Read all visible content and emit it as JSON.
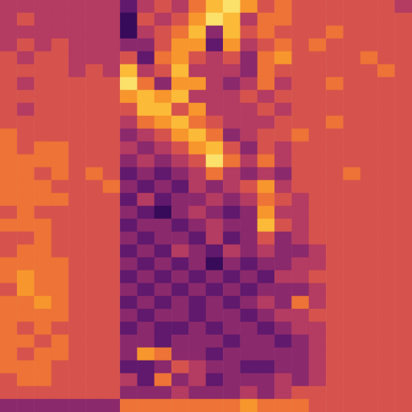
{
  "chart_data": {
    "type": "heatmap",
    "tick_labels": false,
    "grid": false,
    "zlim": [
      0,
      9
    ],
    "cells": [
      [
        4,
        4,
        4,
        4,
        4,
        4,
        4,
        2,
        4,
        5,
        4,
        6,
        8,
        9,
        7,
        5,
        6,
        5,
        5,
        5,
        5,
        5,
        5,
        4
      ],
      [
        4,
        5,
        4,
        4,
        4,
        4,
        4,
        1,
        5,
        4,
        5,
        7,
        9,
        8,
        4,
        6,
        6,
        5,
        5,
        5,
        5,
        5,
        5,
        5
      ],
      [
        4,
        4,
        4,
        4,
        4,
        4,
        4,
        1,
        4,
        5,
        6,
        8,
        3,
        8,
        5,
        6,
        5,
        5,
        5,
        6,
        5,
        5,
        5,
        5
      ],
      [
        4,
        5,
        4,
        5,
        4,
        4,
        4,
        3,
        3,
        5,
        7,
        7,
        2,
        7,
        4,
        5,
        6,
        5,
        6,
        5,
        5,
        5,
        5,
        5
      ],
      [
        5,
        4,
        5,
        5,
        4,
        4,
        4,
        5,
        2,
        6,
        7,
        5,
        4,
        5,
        3,
        6,
        7,
        5,
        5,
        5,
        5,
        6,
        5,
        5
      ],
      [
        5,
        5,
        5,
        5,
        4,
        5,
        4,
        8,
        4,
        5,
        8,
        4,
        4,
        4,
        3,
        6,
        5,
        5,
        5,
        5,
        5,
        5,
        6,
        5
      ],
      [
        5,
        4,
        5,
        5,
        5,
        5,
        5,
        9,
        6,
        3,
        7,
        7,
        4,
        3,
        4,
        6,
        4,
        5,
        5,
        6,
        5,
        5,
        5,
        5
      ],
      [
        5,
        5,
        5,
        5,
        5,
        5,
        5,
        7,
        8,
        7,
        8,
        4,
        4,
        4,
        5,
        4,
        5,
        5,
        5,
        5,
        5,
        5,
        5,
        5
      ],
      [
        5,
        4,
        5,
        5,
        5,
        5,
        5,
        5,
        8,
        8,
        5,
        7,
        4,
        4,
        4,
        5,
        4,
        5,
        5,
        5,
        5,
        5,
        5,
        5
      ],
      [
        5,
        5,
        5,
        5,
        5,
        5,
        5,
        4,
        6,
        7,
        8,
        6,
        5,
        4,
        4,
        4,
        5,
        5,
        5,
        6,
        5,
        5,
        5,
        5
      ],
      [
        6,
        5,
        5,
        5,
        5,
        5,
        5,
        3,
        4,
        5,
        7,
        8,
        6,
        3,
        4,
        5,
        5,
        6,
        5,
        5,
        5,
        5,
        5,
        5
      ],
      [
        6,
        5,
        6,
        6,
        5,
        5,
        5,
        4,
        3,
        4,
        5,
        7,
        8,
        5,
        3,
        5,
        4,
        5,
        5,
        5,
        5,
        5,
        5,
        5
      ],
      [
        6,
        6,
        6,
        6,
        5,
        5,
        5,
        3,
        4,
        3,
        4,
        5,
        9,
        6,
        4,
        6,
        4,
        5,
        5,
        5,
        5,
        5,
        5,
        5
      ],
      [
        6,
        6,
        5,
        6,
        5,
        6,
        5,
        2,
        3,
        2,
        3,
        4,
        6,
        4,
        3,
        4,
        3,
        5,
        5,
        5,
        6,
        5,
        5,
        5
      ],
      [
        6,
        6,
        6,
        5,
        5,
        5,
        6,
        3,
        2,
        3,
        2,
        4,
        3,
        4,
        5,
        7,
        4,
        5,
        5,
        5,
        5,
        5,
        5,
        5
      ],
      [
        6,
        6,
        6,
        6,
        5,
        5,
        5,
        2,
        4,
        2,
        3,
        3,
        4,
        3,
        4,
        6,
        5,
        4,
        5,
        5,
        5,
        5,
        5,
        5
      ],
      [
        5,
        6,
        5,
        5,
        5,
        5,
        5,
        3,
        2,
        1,
        3,
        4,
        3,
        2,
        3,
        7,
        4,
        4,
        5,
        5,
        5,
        5,
        5,
        5
      ],
      [
        6,
        6,
        6,
        5,
        5,
        5,
        5,
        2,
        3,
        3,
        2,
        3,
        4,
        3,
        3,
        8,
        5,
        4,
        5,
        5,
        5,
        5,
        5,
        5
      ],
      [
        5,
        5,
        6,
        5,
        5,
        5,
        5,
        3,
        2,
        3,
        3,
        2,
        4,
        2,
        3,
        5,
        3,
        4,
        5,
        5,
        5,
        5,
        5,
        5
      ],
      [
        5,
        6,
        6,
        5,
        5,
        5,
        5,
        2,
        3,
        2,
        4,
        3,
        2,
        4,
        3,
        4,
        3,
        3,
        4,
        5,
        5,
        5,
        5,
        5
      ],
      [
        6,
        6,
        6,
        6,
        5,
        5,
        5,
        3,
        2,
        3,
        2,
        3,
        1,
        3,
        2,
        3,
        3,
        4,
        4,
        5,
        5,
        5,
        5,
        5
      ],
      [
        6,
        7,
        6,
        6,
        5,
        5,
        5,
        2,
        3,
        2,
        3,
        2,
        3,
        2,
        3,
        2,
        4,
        4,
        5,
        5,
        5,
        5,
        5,
        5
      ],
      [
        5,
        7,
        6,
        6,
        5,
        5,
        5,
        3,
        2,
        3,
        2,
        3,
        2,
        3,
        2,
        3,
        3,
        3,
        4,
        5,
        5,
        5,
        5,
        5
      ],
      [
        6,
        6,
        7,
        6,
        5,
        5,
        5,
        2,
        3,
        2,
        3,
        2,
        3,
        2,
        3,
        4,
        3,
        6,
        4,
        5,
        5,
        5,
        5,
        5
      ],
      [
        6,
        6,
        6,
        6,
        5,
        5,
        5,
        3,
        2,
        3,
        3,
        2,
        3,
        3,
        2,
        3,
        4,
        4,
        5,
        5,
        5,
        5,
        5,
        5
      ],
      [
        6,
        5,
        6,
        5,
        5,
        5,
        5,
        2,
        3,
        2,
        2,
        3,
        2,
        3,
        3,
        2,
        3,
        4,
        4,
        5,
        5,
        5,
        5,
        5
      ],
      [
        6,
        6,
        5,
        6,
        5,
        5,
        5,
        3,
        3,
        2,
        3,
        3,
        3,
        2,
        3,
        3,
        2,
        3,
        4,
        5,
        5,
        5,
        5,
        5
      ],
      [
        6,
        5,
        6,
        6,
        5,
        5,
        5,
        3,
        7,
        6,
        3,
        3,
        2,
        3,
        3,
        3,
        3,
        3,
        4,
        5,
        5,
        5,
        5,
        5
      ],
      [
        6,
        6,
        6,
        5,
        5,
        5,
        5,
        2,
        2,
        3,
        5,
        4,
        3,
        3,
        2,
        2,
        3,
        3,
        4,
        5,
        5,
        5,
        5,
        5
      ],
      [
        5,
        6,
        6,
        5,
        5,
        5,
        5,
        4,
        2,
        6,
        3,
        4,
        2,
        3,
        3,
        3,
        4,
        3,
        4,
        5,
        5,
        5,
        5,
        5
      ],
      [
        5,
        5,
        5,
        5,
        5,
        5,
        5,
        3,
        3,
        3,
        4,
        3,
        3,
        3,
        4,
        3,
        4,
        5,
        5,
        5,
        5,
        5,
        5,
        5
      ],
      [
        3,
        3,
        3,
        3,
        3,
        3,
        3,
        6,
        6,
        6,
        6,
        6,
        6,
        6,
        7,
        6,
        6,
        6,
        5,
        5,
        5,
        5,
        5,
        5
      ]
    ]
  }
}
